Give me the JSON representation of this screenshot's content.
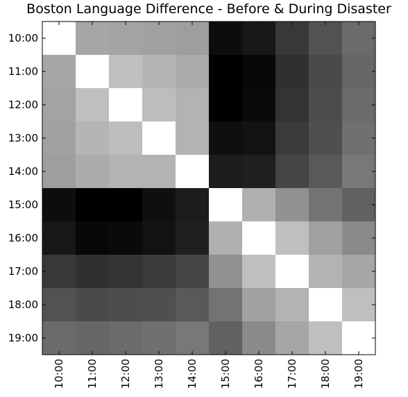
{
  "chart_data": {
    "type": "heatmap",
    "title": "Boston Language Difference - Before & During Disaster",
    "colormap": "gray",
    "zlim": [
      0,
      1
    ],
    "xcategories": [
      "10:00",
      "11:00",
      "12:00",
      "13:00",
      "14:00",
      "15:00",
      "16:00",
      "17:00",
      "18:00",
      "19:00"
    ],
    "ycategories": [
      "10:00",
      "11:00",
      "12:00",
      "13:00",
      "14:00",
      "15:00",
      "16:00",
      "17:00",
      "18:00",
      "19:00"
    ],
    "values": [
      [
        1,
        0.65,
        0.64,
        0.63,
        0.62,
        0.05,
        0.09,
        0.22,
        0.32,
        0.42
      ],
      [
        0.65,
        1,
        0.75,
        0.71,
        0.67,
        0.0,
        0.03,
        0.19,
        0.29,
        0.4
      ],
      [
        0.64,
        0.75,
        1,
        0.74,
        0.7,
        0.0,
        0.04,
        0.2,
        0.3,
        0.42
      ],
      [
        0.63,
        0.71,
        0.74,
        1,
        0.7,
        0.06,
        0.07,
        0.23,
        0.31,
        0.44
      ],
      [
        0.62,
        0.67,
        0.7,
        0.7,
        1,
        0.11,
        0.12,
        0.27,
        0.35,
        0.47
      ],
      [
        0.05,
        0.0,
        0.0,
        0.06,
        0.11,
        1,
        0.69,
        0.57,
        0.45,
        0.38
      ],
      [
        0.09,
        0.03,
        0.04,
        0.07,
        0.12,
        0.69,
        1,
        0.75,
        0.63,
        0.54
      ],
      [
        0.22,
        0.19,
        0.2,
        0.23,
        0.27,
        0.57,
        0.75,
        1,
        0.7,
        0.65
      ],
      [
        0.32,
        0.29,
        0.3,
        0.31,
        0.35,
        0.45,
        0.63,
        0.7,
        1,
        0.75
      ],
      [
        0.42,
        0.4,
        0.42,
        0.44,
        0.47,
        0.38,
        0.54,
        0.65,
        0.75,
        1
      ]
    ]
  }
}
